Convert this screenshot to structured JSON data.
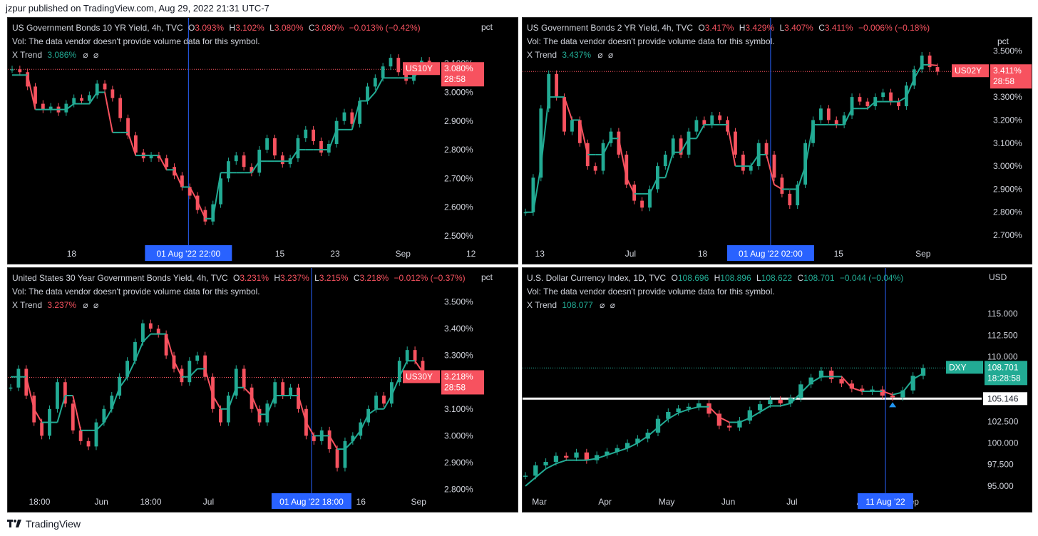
{
  "header": {
    "publisher_line": "jzpur published on TradingView.com, Aug 29, 2022 21:31 UTC-7"
  },
  "footer": {
    "brand": "TradingView"
  },
  "colors": {
    "up": "#22ab94",
    "down": "#f7525f",
    "marker_up": "#2196f3",
    "marker_down": "#ff9800",
    "vline": "#2962ff",
    "axis_text": "#d1d4dc"
  },
  "charts": [
    {
      "title": "US Government Bonds 10 YR Yield, 4h, TVC",
      "o": "3.093%",
      "h": "3.102%",
      "l": "3.080%",
      "c": "3.080%",
      "chg": "−0.013% (−0.42%)",
      "vol": "Vol: The data vendor doesn't provide volume data for this symbol.",
      "trend_label": "X Trend",
      "trend_value": "3.086%",
      "trend_color": "green",
      "ohlc_color": "red",
      "unit": "pct",
      "badge_sym": "US10Y",
      "badge_price": "3.080%",
      "badge_time": "28:58",
      "badge_color": "#f7525f",
      "x_labels": [
        "18",
        "15",
        "23",
        "Sep",
        "12"
      ],
      "date_box": "01 Aug '22   22:00",
      "y_ticks": [
        "3.100%",
        "3.000%",
        "2.900%",
        "2.800%",
        "2.700%",
        "2.600%",
        "2.500%"
      ]
    },
    {
      "title": "US Government Bonds 2 YR Yield, 4h, TVC",
      "o": "3.417%",
      "h": "3.429%",
      "l": "3.407%",
      "c": "3.411%",
      "chg": "−0.006% (−0.18%)",
      "vol": "Vol: The data vendor doesn't provide volume data for this symbol.",
      "trend_label": "X Trend",
      "trend_value": "3.437%",
      "trend_color": "green",
      "ohlc_color": "red",
      "unit": "pct",
      "badge_sym": "US02Y",
      "badge_price": "3.411%",
      "badge_time": "28:58",
      "badge_color": "#f7525f",
      "x_labels": [
        "13",
        "Jul",
        "18",
        "15",
        "Sep"
      ],
      "date_box": "01 Aug '22   02:00",
      "y_ticks": [
        "3.500%",
        "3.300%",
        "3.200%",
        "3.100%",
        "3.000%",
        "2.900%",
        "2.800%",
        "2.700%"
      ]
    },
    {
      "title": "United States 30 Year Government Bonds Yield, 4h, TVC",
      "o": "3.231%",
      "h": "3.237%",
      "l": "3.215%",
      "c": "3.218%",
      "chg": "−0.012% (−0.37%)",
      "vol": "Vol: The data vendor doesn't provide volume data for this symbol.",
      "trend_label": "X Trend",
      "trend_value": "3.237%",
      "trend_color": "red",
      "ohlc_color": "red",
      "unit": "pct",
      "badge_sym": "US30Y",
      "badge_price": "3.218%",
      "badge_time": "28:58",
      "badge_color": "#f7525f",
      "x_labels": [
        "18:00",
        "Jun",
        "18:00",
        "Jul",
        "16",
        "Sep"
      ],
      "date_box": "01 Aug '22   18:00",
      "y_ticks": [
        "3.500%",
        "3.400%",
        "3.300%",
        "3.100%",
        "3.000%",
        "2.900%",
        "2.800%"
      ]
    },
    {
      "title": "U.S. Dollar Currency Index, 1D, TVC",
      "o": "108.696",
      "h": "108.896",
      "l": "108.622",
      "c": "108.701",
      "chg": "−0.044 (−0.04%)",
      "vol": "Vol: The data vendor doesn't provide volume data for this symbol.",
      "trend_label": "X Trend",
      "trend_value": "108.077",
      "trend_color": "green",
      "ohlc_color": "green",
      "unit": "USD",
      "badge_sym": "DXY",
      "badge_price": "108.701",
      "badge_time": "18:28:58",
      "badge_color": "#22ab94",
      "x_labels": [
        "Mar",
        "Apr",
        "May",
        "Jun",
        "Jul",
        "A",
        "Sep"
      ],
      "date_box": "11 Aug '22",
      "y_ticks": [
        "115.000",
        "112.500",
        "110.000",
        "102.500",
        "100.000",
        "97.500",
        "95.000"
      ],
      "level_label": "105.146"
    }
  ],
  "chart_data": [
    {
      "type": "line",
      "title": "US Government Bonds 10 YR Yield, 4h, TVC",
      "ylabel": "pct",
      "ylim": [
        2.47,
        3.16
      ],
      "x_ticks": [
        "18",
        "15",
        "23",
        "Sep",
        "12"
      ],
      "series": [
        {
          "name": "US10Y",
          "values": [
            3.08,
            3.07,
            3.02,
            2.96,
            2.94,
            2.95,
            2.93,
            2.96,
            2.98,
            2.97,
            2.99,
            3.03,
            3.01,
            2.98,
            2.91,
            2.85,
            2.79,
            2.77,
            2.78,
            2.77,
            2.74,
            2.71,
            2.67,
            2.64,
            2.59,
            2.55,
            2.61,
            2.7,
            2.76,
            2.78,
            2.74,
            2.72,
            2.8,
            2.84,
            2.78,
            2.75,
            2.77,
            2.84,
            2.87,
            2.83,
            2.79,
            2.82,
            2.9,
            2.93,
            2.89,
            2.97,
            3.02,
            3.05,
            3.09,
            3.12,
            3.07,
            3.04,
            3.09,
            3.11,
            3.09,
            3.08
          ]
        },
        {
          "name": "X Trend",
          "values": [
            3.06,
            3.06,
            3.06,
            2.94,
            2.94,
            2.94,
            2.94,
            2.94,
            2.96,
            2.96,
            2.96,
            3.0,
            3.0,
            2.86,
            2.86,
            2.86,
            2.78,
            2.78,
            2.78,
            2.78,
            2.73,
            2.73,
            2.67,
            2.67,
            2.62,
            2.56,
            2.56,
            2.72,
            2.72,
            2.72,
            2.72,
            2.72,
            2.76,
            2.76,
            2.76,
            2.76,
            2.76,
            2.8,
            2.8,
            2.8,
            2.8,
            2.8,
            2.87,
            2.87,
            2.87,
            2.97,
            2.97,
            3.0,
            3.05,
            3.05,
            3.05,
            3.05,
            3.05,
            3.09,
            3.09,
            3.086
          ]
        }
      ],
      "last_price": 3.08
    },
    {
      "type": "line",
      "title": "US Government Bonds 2 YR Yield, 4h, TVC",
      "ylabel": "pct",
      "ylim": [
        2.66,
        3.52
      ],
      "x_ticks": [
        "13",
        "Jul",
        "18",
        "15",
        "Sep"
      ],
      "series": [
        {
          "name": "US02Y",
          "values": [
            2.8,
            2.95,
            3.25,
            3.4,
            3.3,
            3.15,
            3.2,
            3.1,
            3.0,
            2.98,
            3.1,
            3.15,
            3.05,
            2.92,
            2.85,
            2.82,
            2.9,
            3.0,
            3.05,
            3.12,
            3.05,
            3.15,
            3.2,
            3.18,
            3.22,
            3.2,
            3.15,
            3.05,
            2.98,
            3.0,
            3.1,
            3.05,
            2.95,
            2.88,
            2.83,
            2.92,
            3.1,
            3.2,
            3.25,
            3.2,
            3.18,
            3.22,
            3.3,
            3.28,
            3.26,
            3.3,
            3.32,
            3.28,
            3.26,
            3.35,
            3.42,
            3.48,
            3.43,
            3.41
          ]
        },
        {
          "name": "X Trend",
          "values": [
            2.8,
            2.8,
            3.0,
            3.3,
            3.3,
            3.3,
            3.2,
            3.2,
            3.05,
            3.05,
            3.05,
            3.12,
            3.12,
            2.95,
            2.88,
            2.88,
            2.88,
            2.95,
            2.95,
            3.06,
            3.06,
            3.12,
            3.12,
            3.18,
            3.18,
            3.18,
            3.18,
            3.0,
            3.0,
            3.0,
            3.05,
            3.05,
            2.92,
            2.9,
            2.9,
            2.9,
            3.0,
            3.18,
            3.18,
            3.18,
            3.18,
            3.18,
            3.25,
            3.25,
            3.25,
            3.28,
            3.28,
            3.28,
            3.28,
            3.3,
            3.38,
            3.44,
            3.44,
            3.437
          ]
        }
      ],
      "last_price": 3.411
    },
    {
      "type": "line",
      "title": "United States 30 Year Government Bonds Yield, 4h, TVC",
      "ylabel": "pct",
      "ylim": [
        2.78,
        3.52
      ],
      "x_ticks": [
        "18:00",
        "Jun",
        "18:00",
        "Jul",
        "16",
        "Sep"
      ],
      "series": [
        {
          "name": "US30Y",
          "values": [
            3.18,
            3.25,
            3.15,
            3.05,
            3.0,
            3.1,
            3.2,
            3.12,
            3.02,
            2.98,
            2.96,
            3.05,
            3.1,
            3.15,
            3.22,
            3.28,
            3.35,
            3.42,
            3.4,
            3.38,
            3.3,
            3.25,
            3.2,
            3.28,
            3.3,
            3.22,
            3.1,
            3.05,
            3.15,
            3.25,
            3.18,
            3.1,
            3.05,
            3.12,
            3.2,
            3.15,
            3.18,
            3.1,
            3.0,
            2.98,
            3.02,
            2.95,
            2.88,
            2.98,
            3.0,
            3.05,
            3.1,
            3.15,
            3.12,
            3.2,
            3.28,
            3.32,
            3.28,
            3.22
          ]
        },
        {
          "name": "X Trend",
          "values": [
            3.22,
            3.22,
            3.22,
            3.1,
            3.05,
            3.05,
            3.05,
            3.15,
            3.15,
            3.02,
            3.02,
            3.02,
            3.05,
            3.1,
            3.18,
            3.22,
            3.28,
            3.35,
            3.38,
            3.38,
            3.38,
            3.28,
            3.22,
            3.22,
            3.25,
            3.25,
            3.15,
            3.1,
            3.1,
            3.18,
            3.18,
            3.15,
            3.08,
            3.08,
            3.15,
            3.15,
            3.15,
            3.15,
            3.05,
            3.0,
            3.0,
            3.0,
            2.95,
            2.95,
            2.98,
            3.02,
            3.08,
            3.1,
            3.1,
            3.15,
            3.22,
            3.28,
            3.28,
            3.237
          ]
        }
      ],
      "last_price": 3.218
    },
    {
      "type": "line",
      "title": "U.S. Dollar Currency Index, 1D, TVC",
      "ylabel": "USD",
      "ylim": [
        94.0,
        117.0
      ],
      "x_ticks": [
        "Mar",
        "Apr",
        "May",
        "Jun",
        "Jul",
        "A",
        "Sep"
      ],
      "series": [
        {
          "name": "DXY",
          "values": [
            96.2,
            97.4,
            97.8,
            98.5,
            98.3,
            98.9,
            98.0,
            98.6,
            99.0,
            99.4,
            100.0,
            100.5,
            101.2,
            102.8,
            103.6,
            104.0,
            104.2,
            104.6,
            103.4,
            102.0,
            101.8,
            102.6,
            103.8,
            104.5,
            105.0,
            104.6,
            105.2,
            106.8,
            107.6,
            108.4,
            107.4,
            106.9,
            106.3,
            106.0,
            106.2,
            105.5,
            105.3,
            106.1,
            107.8,
            108.7
          ]
        },
        {
          "name": "X Trend",
          "values": [
            95.0,
            96.0,
            97.0,
            97.6,
            98.0,
            98.0,
            98.0,
            98.2,
            98.6,
            99.0,
            99.4,
            100.0,
            100.8,
            101.8,
            102.8,
            103.5,
            103.9,
            104.2,
            104.2,
            103.0,
            102.4,
            102.4,
            102.9,
            103.6,
            104.3,
            104.3,
            104.6,
            105.8,
            107.0,
            107.7,
            107.7,
            107.7,
            106.4,
            106.0,
            106.0,
            106.0,
            105.6,
            105.9,
            107.4,
            108.077
          ]
        }
      ],
      "last_price": 108.701,
      "horizontal_level": 105.146
    }
  ]
}
